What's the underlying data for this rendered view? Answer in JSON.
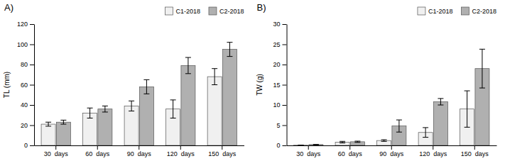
{
  "chart_data": [
    {
      "type": "bar",
      "title": "A)",
      "ylabel": "TL (mm)",
      "categories": [
        "30  days",
        "60  days",
        "90  days",
        "120  days",
        "150  days"
      ],
      "series": [
        {
          "name": "C1-2018",
          "color": "#f0f0f0",
          "values": [
            21,
            32,
            39,
            36,
            68
          ],
          "errors": [
            2,
            5,
            5,
            9,
            8
          ]
        },
        {
          "name": "C2-2018",
          "color": "#b0b0b0",
          "values": [
            23,
            36,
            58,
            79,
            95
          ],
          "errors": [
            2,
            3,
            7,
            8,
            7
          ]
        }
      ],
      "ylim": [
        0,
        120
      ],
      "yticks": [
        0,
        20,
        40,
        60,
        80,
        100,
        120
      ],
      "grid": false,
      "legend": "upper right"
    },
    {
      "type": "bar",
      "title": "B)",
      "ylabel": "TW (g)",
      "categories": [
        "30  days",
        "60  days",
        "90  days",
        "120  days",
        "150  days"
      ],
      "series": [
        {
          "name": "C1-2018",
          "color": "#f0f0f0",
          "values": [
            0.05,
            0.8,
            1.2,
            3.2,
            9.0
          ],
          "errors": [
            0.02,
            0.2,
            0.2,
            1.2,
            4.5
          ]
        },
        {
          "name": "C2-2018",
          "color": "#b0b0b0",
          "values": [
            0.2,
            0.9,
            4.8,
            10.8,
            19.0
          ],
          "errors": [
            0.05,
            0.15,
            1.5,
            0.8,
            4.8
          ]
        }
      ],
      "ylim": [
        0,
        30
      ],
      "yticks": [
        0,
        5,
        10,
        15,
        20,
        25,
        30
      ],
      "grid": false,
      "legend": "upper right"
    }
  ]
}
